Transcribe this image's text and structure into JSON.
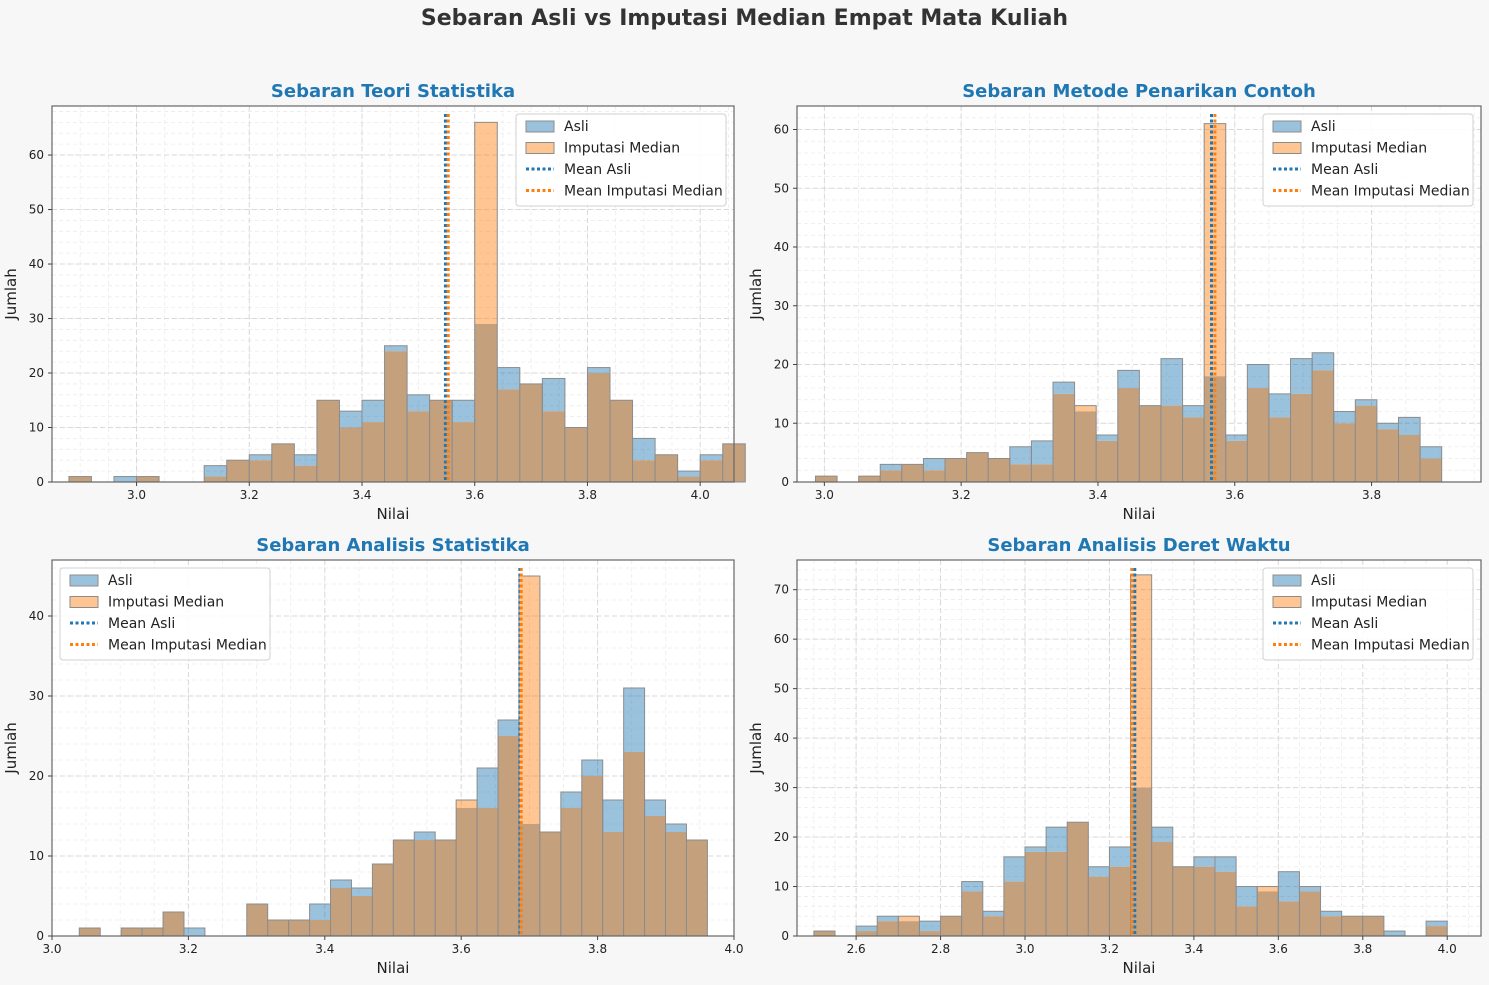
{
  "figure": {
    "title": "Sebaran Asli vs Imputasi Median Empat Mata Kuliah",
    "colors": {
      "asli": "#1f77b4",
      "imputasi": "#ff7f0e",
      "overlap": "#c4a07d",
      "title": "#1f77b4"
    }
  },
  "chart_data": [
    {
      "type": "bar",
      "title": "Sebaran Teori Statistika",
      "xlabel": "Nilai",
      "ylabel": "Jumlah",
      "xlim": [
        2.85,
        4.06
      ],
      "ylim": [
        0,
        69
      ],
      "xticks": [
        3.0,
        3.2,
        3.4,
        3.6,
        3.8,
        4.0
      ],
      "xtick_labels": [
        "3.0",
        "3.2",
        "3.4",
        "3.6",
        "3.8",
        "4.0"
      ],
      "yticks": [
        0,
        10,
        20,
        30,
        40,
        50,
        60
      ],
      "bin_start": 2.88,
      "bin_width": 0.04,
      "legend": {
        "position": "upper right",
        "entries": [
          "Asli",
          "Imputasi Median",
          "Mean Asli",
          "Mean Imputasi Median"
        ]
      },
      "grid": true,
      "series": [
        {
          "name": "Asli",
          "values": [
            1,
            0,
            1,
            1,
            0,
            0,
            3,
            4,
            5,
            7,
            5,
            15,
            13,
            15,
            25,
            16,
            15,
            15,
            29,
            21,
            18,
            19,
            10,
            21,
            15,
            8,
            5,
            2,
            5,
            7
          ]
        },
        {
          "name": "Imputasi Median",
          "values": [
            1,
            0,
            0,
            1,
            0,
            0,
            1,
            4,
            4,
            7,
            3,
            15,
            10,
            11,
            24,
            13,
            15,
            11,
            66,
            17,
            18,
            13,
            10,
            20,
            15,
            4,
            5,
            1,
            4,
            7
          ]
        }
      ],
      "mean_lines": [
        {
          "name": "Mean Asli",
          "x": 3.548
        },
        {
          "name": "Mean Imputasi Median",
          "x": 3.553
        }
      ]
    },
    {
      "type": "bar",
      "title": "Sebaran Metode Penarikan Contoh",
      "xlabel": "Nilai",
      "ylabel": "Jumlah",
      "xlim": [
        2.96,
        3.96
      ],
      "ylim": [
        0,
        64
      ],
      "xticks": [
        3.0,
        3.2,
        3.4,
        3.6,
        3.8
      ],
      "xtick_labels": [
        "3.0",
        "3.2",
        "3.4",
        "3.6",
        "3.8"
      ],
      "yticks": [
        0,
        10,
        20,
        30,
        40,
        50,
        60
      ],
      "bin_start": 2.987,
      "bin_width": 0.03157,
      "legend": {
        "position": "upper right",
        "entries": [
          "Asli",
          "Imputasi Median",
          "Mean Asli",
          "Mean Imputasi Median"
        ]
      },
      "grid": true,
      "series": [
        {
          "name": "Asli",
          "values": [
            1,
            0,
            1,
            3,
            3,
            4,
            4,
            5,
            4,
            6,
            7,
            17,
            12,
            8,
            19,
            13,
            21,
            13,
            18,
            8,
            20,
            15,
            21,
            22,
            12,
            14,
            10,
            11,
            6
          ]
        },
        {
          "name": "Imputasi Median",
          "values": [
            1,
            0,
            1,
            2,
            3,
            2,
            4,
            5,
            4,
            3,
            3,
            15,
            13,
            7,
            16,
            13,
            13,
            11,
            61,
            7,
            16,
            11,
            15,
            19,
            10,
            13,
            9,
            8,
            4
          ]
        }
      ],
      "mean_lines": [
        {
          "name": "Mean Asli",
          "x": 3.566
        },
        {
          "name": "Mean Imputasi Median",
          "x": 3.571
        }
      ]
    },
    {
      "type": "bar",
      "title": "Sebaran Analisis Statistika",
      "xlabel": "Nilai",
      "ylabel": "Jumlah",
      "xlim": [
        3.0,
        4.0
      ],
      "ylim": [
        0,
        47
      ],
      "xticks": [
        3.0,
        3.2,
        3.4,
        3.6,
        3.8,
        4.0
      ],
      "xtick_labels": [
        "3.0",
        "3.2",
        "3.4",
        "3.6",
        "3.8",
        "4.0"
      ],
      "yticks": [
        0,
        10,
        20,
        30,
        40
      ],
      "bin_start": 3.04,
      "bin_width": 0.0307,
      "legend": {
        "position": "upper left",
        "entries": [
          "Asli",
          "Imputasi Median",
          "Mean Asli",
          "Mean Imputasi Median"
        ]
      },
      "grid": true,
      "series": [
        {
          "name": "Asli",
          "values": [
            1,
            0,
            1,
            1,
            3,
            1,
            0,
            0,
            4,
            2,
            2,
            4,
            7,
            6,
            9,
            12,
            13,
            12,
            16,
            21,
            27,
            14,
            13,
            18,
            22,
            17,
            31,
            17,
            14,
            12
          ]
        },
        {
          "name": "Imputasi Median",
          "values": [
            1,
            0,
            1,
            1,
            3,
            0,
            0,
            0,
            4,
            2,
            2,
            2,
            6,
            5,
            9,
            12,
            12,
            12,
            17,
            16,
            25,
            45,
            13,
            16,
            20,
            13,
            23,
            15,
            13,
            12
          ]
        }
      ],
      "mean_lines": [
        {
          "name": "Mean Asli",
          "x": 3.686
        },
        {
          "name": "Mean Imputasi Median",
          "x": 3.688
        }
      ]
    },
    {
      "type": "bar",
      "title": "Sebaran Analisis Deret Waktu",
      "xlabel": "Nilai",
      "ylabel": "Jumlah",
      "xlim": [
        2.46,
        4.08
      ],
      "ylim": [
        0,
        76
      ],
      "xticks": [
        2.6,
        2.8,
        3.0,
        3.2,
        3.4,
        3.6,
        3.8,
        4.0
      ],
      "xtick_labels": [
        "2.6",
        "2.8",
        "3.0",
        "3.2",
        "3.4",
        "3.6",
        "3.8",
        "4.0"
      ],
      "yticks": [
        0,
        10,
        20,
        30,
        40,
        50,
        60,
        70
      ],
      "bin_start": 2.5,
      "bin_width": 0.05,
      "legend": {
        "position": "upper right",
        "entries": [
          "Asli",
          "Imputasi Median",
          "Mean Asli",
          "Mean Imputasi Median"
        ]
      },
      "grid": true,
      "series": [
        {
          "name": "Asli",
          "values": [
            1,
            0,
            2,
            4,
            3,
            3,
            4,
            11,
            5,
            16,
            18,
            22,
            23,
            14,
            18,
            30,
            22,
            14,
            16,
            16,
            10,
            9,
            13,
            10,
            5,
            4,
            4,
            1,
            0,
            3
          ]
        },
        {
          "name": "Imputasi Median",
          "values": [
            1,
            0,
            1,
            3,
            4,
            1,
            4,
            9,
            4,
            11,
            17,
            17,
            23,
            12,
            14,
            73,
            19,
            14,
            14,
            13,
            6,
            10,
            7,
            9,
            4,
            4,
            4,
            0,
            0,
            2
          ]
        }
      ],
      "mean_lines": [
        {
          "name": "Mean Asli",
          "x": 3.26
        },
        {
          "name": "Mean Imputasi Median",
          "x": 3.253
        }
      ]
    }
  ]
}
